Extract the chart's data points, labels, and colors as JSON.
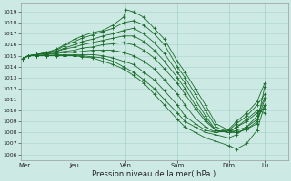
{
  "xlabel": "Pression niveau de la mer( hPa )",
  "xlim": [
    0,
    5.2
  ],
  "ylim": [
    1005.5,
    1019.8
  ],
  "yticks": [
    1006,
    1007,
    1008,
    1009,
    1010,
    1011,
    1012,
    1013,
    1014,
    1015,
    1016,
    1017,
    1018,
    1019
  ],
  "xtick_labels": [
    "Mer",
    "Jeu",
    "Ven",
    "Sam",
    "Dim",
    "Lu"
  ],
  "xtick_pos": [
    0.08,
    1.05,
    2.05,
    3.05,
    4.05,
    4.75
  ],
  "vline_pos": [
    0.08,
    1.05,
    2.05,
    3.05,
    4.05,
    4.75
  ],
  "background_color": "#cce9e3",
  "grid_color": "#aad4cc",
  "line_color": "#1a6b2a",
  "series": [
    {
      "x": [
        0.04,
        0.15,
        0.3,
        0.5,
        0.7,
        0.85,
        1.05,
        1.2,
        1.4,
        1.6,
        1.8,
        2.0,
        2.05,
        2.2,
        2.4,
        2.6,
        2.8,
        3.05,
        3.2,
        3.4,
        3.6,
        3.8,
        4.05,
        4.2,
        4.4,
        4.6,
        4.75
      ],
      "y": [
        1014.7,
        1015.0,
        1015.1,
        1015.3,
        1015.6,
        1016.0,
        1016.5,
        1016.8,
        1017.1,
        1017.3,
        1017.8,
        1018.5,
        1019.2,
        1019.0,
        1018.5,
        1017.5,
        1016.5,
        1014.5,
        1013.5,
        1012.0,
        1010.5,
        1008.8,
        1008.2,
        1008.0,
        1008.3,
        1008.8,
        1012.2
      ]
    },
    {
      "x": [
        0.04,
        0.15,
        0.3,
        0.5,
        0.7,
        0.85,
        1.05,
        1.2,
        1.4,
        1.6,
        1.8,
        2.0,
        2.2,
        2.4,
        2.6,
        2.8,
        3.05,
        3.2,
        3.4,
        3.6,
        3.8,
        4.05,
        4.2,
        4.4,
        4.6,
        4.75
      ],
      "y": [
        1014.7,
        1015.0,
        1015.1,
        1015.3,
        1015.5,
        1015.9,
        1016.3,
        1016.6,
        1016.9,
        1017.2,
        1017.5,
        1018.0,
        1018.2,
        1017.8,
        1017.0,
        1016.0,
        1014.0,
        1013.0,
        1011.5,
        1010.0,
        1008.5,
        1008.0,
        1008.0,
        1008.3,
        1009.0,
        1011.0
      ]
    },
    {
      "x": [
        0.04,
        0.15,
        0.3,
        0.5,
        0.7,
        0.85,
        1.05,
        1.2,
        1.4,
        1.6,
        1.8,
        2.0,
        2.2,
        2.4,
        2.6,
        2.8,
        3.05,
        3.2,
        3.4,
        3.6,
        3.8,
        4.05,
        4.2,
        4.4,
        4.6,
        4.75
      ],
      "y": [
        1014.7,
        1015.0,
        1015.1,
        1015.2,
        1015.4,
        1015.7,
        1016.0,
        1016.3,
        1016.5,
        1016.8,
        1017.0,
        1017.3,
        1017.5,
        1017.0,
        1016.2,
        1015.2,
        1013.5,
        1012.5,
        1011.0,
        1009.5,
        1008.2,
        1008.0,
        1008.2,
        1008.5,
        1009.2,
        1010.5
      ]
    },
    {
      "x": [
        0.04,
        0.15,
        0.3,
        0.5,
        0.7,
        0.85,
        1.05,
        1.2,
        1.4,
        1.6,
        1.8,
        2.0,
        2.2,
        2.4,
        2.6,
        2.8,
        3.05,
        3.2,
        3.4,
        3.6,
        3.8,
        4.05,
        4.2,
        4.4,
        4.6,
        4.75
      ],
      "y": [
        1014.7,
        1015.0,
        1015.1,
        1015.2,
        1015.4,
        1015.6,
        1015.8,
        1016.0,
        1016.2,
        1016.4,
        1016.6,
        1016.8,
        1016.8,
        1016.3,
        1015.5,
        1014.5,
        1013.0,
        1012.0,
        1010.5,
        1009.2,
        1008.2,
        1008.0,
        1008.5,
        1009.0,
        1009.8,
        1010.2
      ]
    },
    {
      "x": [
        0.04,
        0.15,
        0.3,
        0.5,
        0.7,
        0.85,
        1.05,
        1.2,
        1.4,
        1.6,
        1.8,
        2.0,
        2.2,
        2.4,
        2.6,
        2.8,
        3.05,
        3.2,
        3.4,
        3.6,
        3.8,
        4.05,
        4.2,
        4.4,
        4.6,
        4.75
      ],
      "y": [
        1014.7,
        1015.0,
        1015.0,
        1015.1,
        1015.3,
        1015.4,
        1015.5,
        1015.7,
        1015.8,
        1016.0,
        1016.1,
        1016.2,
        1016.0,
        1015.5,
        1014.8,
        1013.8,
        1012.5,
        1011.5,
        1010.2,
        1009.0,
        1008.2,
        1008.0,
        1008.5,
        1009.2,
        1010.0,
        1009.8
      ]
    },
    {
      "x": [
        0.04,
        0.15,
        0.3,
        0.5,
        0.7,
        0.85,
        1.05,
        1.2,
        1.4,
        1.6,
        1.8,
        2.0,
        2.2,
        2.4,
        2.6,
        2.8,
        3.05,
        3.2,
        3.4,
        3.6,
        3.8,
        4.05,
        4.2,
        4.4,
        4.6,
        4.75
      ],
      "y": [
        1014.7,
        1015.0,
        1015.0,
        1015.1,
        1015.2,
        1015.3,
        1015.3,
        1015.4,
        1015.5,
        1015.5,
        1015.5,
        1015.3,
        1015.0,
        1014.5,
        1013.8,
        1012.8,
        1011.5,
        1010.5,
        1009.3,
        1008.5,
        1008.0,
        1008.2,
        1008.8,
        1009.5,
        1010.5,
        1011.5
      ]
    },
    {
      "x": [
        0.04,
        0.15,
        0.3,
        0.5,
        0.7,
        0.85,
        1.05,
        1.2,
        1.4,
        1.6,
        1.8,
        2.0,
        2.2,
        2.4,
        2.6,
        2.8,
        3.05,
        3.2,
        3.4,
        3.6,
        3.8,
        4.05,
        4.2,
        4.4,
        4.6,
        4.75
      ],
      "y": [
        1014.7,
        1015.0,
        1015.0,
        1015.0,
        1015.1,
        1015.1,
        1015.1,
        1015.1,
        1015.1,
        1015.0,
        1014.8,
        1014.5,
        1014.2,
        1013.5,
        1012.8,
        1011.8,
        1010.5,
        1009.5,
        1008.8,
        1008.2,
        1008.0,
        1008.3,
        1009.0,
        1009.8,
        1010.8,
        1012.5
      ]
    },
    {
      "x": [
        0.04,
        0.15,
        0.3,
        0.5,
        0.7,
        0.85,
        1.05,
        1.2,
        1.4,
        1.6,
        1.8,
        2.0,
        2.2,
        2.4,
        2.6,
        2.8,
        3.05,
        3.2,
        3.4,
        3.6,
        3.8,
        4.05,
        4.2,
        4.4,
        4.6,
        4.75
      ],
      "y": [
        1014.7,
        1015.0,
        1015.0,
        1015.0,
        1015.0,
        1015.0,
        1015.0,
        1015.0,
        1014.9,
        1014.8,
        1014.5,
        1014.0,
        1013.5,
        1012.8,
        1012.0,
        1011.0,
        1009.8,
        1009.0,
        1008.5,
        1008.0,
        1007.8,
        1007.5,
        1007.8,
        1008.5,
        1009.5,
        1011.2
      ]
    },
    {
      "x": [
        0.04,
        0.15,
        0.3,
        0.5,
        0.7,
        0.85,
        1.05,
        1.2,
        1.4,
        1.6,
        1.8,
        2.0,
        2.2,
        2.4,
        2.6,
        2.8,
        3.05,
        3.2,
        3.4,
        3.6,
        3.8,
        4.05,
        4.2,
        4.4,
        4.6,
        4.75
      ],
      "y": [
        1014.7,
        1015.0,
        1015.0,
        1015.0,
        1015.0,
        1015.0,
        1015.0,
        1014.9,
        1014.8,
        1014.5,
        1014.2,
        1013.8,
        1013.2,
        1012.5,
        1011.5,
        1010.5,
        1009.2,
        1008.5,
        1008.0,
        1007.5,
        1007.2,
        1006.8,
        1006.5,
        1007.0,
        1008.2,
        1010.5
      ]
    }
  ]
}
